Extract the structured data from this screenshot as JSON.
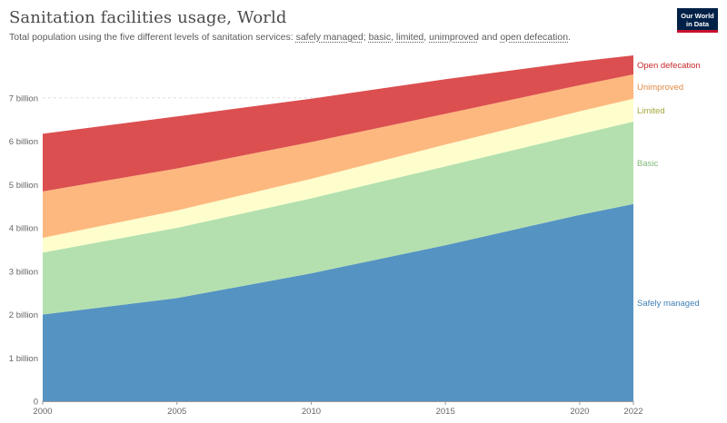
{
  "header": {
    "title": "Sanitation facilities usage, World",
    "subtitle_lead": "Total population using the five different levels of sanitation services: ",
    "subtitle_terms": [
      "safely managed",
      "basic",
      "limited",
      "unimproved",
      "open defecation"
    ],
    "subtitle_seps": [
      "; ",
      ", ",
      ", ",
      " and ",
      "."
    ]
  },
  "logo": {
    "line1": "Our World",
    "line2": "in Data"
  },
  "colors": {
    "safely_managed": "#5593c2",
    "basic": "#b4e0af",
    "limited": "#fefecc",
    "unimproved": "#fdb87f",
    "open_defecation": "#db4f50",
    "label_safely_managed": "#3f7fb5",
    "label_basic": "#7fba77",
    "label_limited": "#a6a63c",
    "label_unimproved": "#e08a45",
    "label_open_defecation": "#c7292b"
  },
  "chart_data": {
    "type": "area",
    "stacked": true,
    "title": "Sanitation facilities usage, World",
    "xlabel": "",
    "ylabel": "",
    "x": [
      2000,
      2005,
      2010,
      2015,
      2020,
      2022
    ],
    "xlim": [
      2000,
      2022
    ],
    "x_ticks": [
      "2000",
      "2005",
      "2010",
      "2015",
      "2020",
      "2022"
    ],
    "ylim": [
      0,
      8
    ],
    "y_ticks": [
      0,
      1,
      2,
      3,
      4,
      5,
      6,
      7
    ],
    "y_tick_labels": [
      "0",
      "1 billion",
      "2 billion",
      "3 billion",
      "4 billion",
      "5 billion",
      "6 billion",
      "7 billion"
    ],
    "grid": "horizontal dashed",
    "legend": "inline labels at right end",
    "series": [
      {
        "name": "Safely managed",
        "key": "safely_managed",
        "values": [
          2.0,
          2.38,
          2.95,
          3.6,
          4.3,
          4.55
        ]
      },
      {
        "name": "Basic",
        "key": "basic",
        "values": [
          1.43,
          1.62,
          1.73,
          1.82,
          1.86,
          1.9
        ]
      },
      {
        "name": "Limited",
        "key": "limited",
        "values": [
          0.34,
          0.4,
          0.45,
          0.5,
          0.53,
          0.53
        ]
      },
      {
        "name": "Unimproved",
        "key": "unimproved",
        "values": [
          1.07,
          0.97,
          0.85,
          0.71,
          0.6,
          0.56
        ]
      },
      {
        "name": "Open defecation",
        "key": "open_defecation",
        "values": [
          1.33,
          1.2,
          1.0,
          0.8,
          0.55,
          0.44
        ]
      }
    ]
  }
}
